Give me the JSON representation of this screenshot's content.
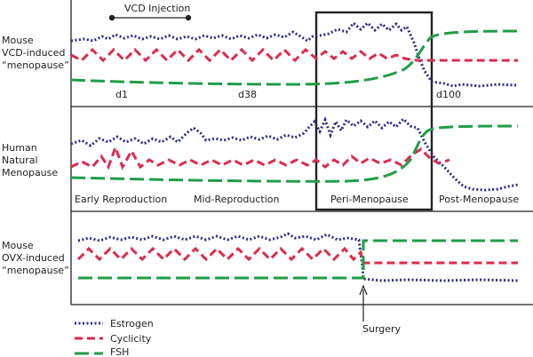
{
  "colors": {
    "estrogen": "#2b2b8c",
    "cyclicity": "#dc2b4e",
    "fsh": "#1f9e46",
    "frame": "#222222",
    "text": "#222222"
  },
  "panels": {
    "vcd": {
      "label_lines": [
        "Mouse",
        "VCD-induced",
        "“menopause”"
      ],
      "markers": [
        "d1",
        "d38",
        "d100"
      ],
      "injection_label": "VCD Injection"
    },
    "human": {
      "label_lines": [
        "Human",
        "Natural",
        "Menopause"
      ],
      "phases": [
        "Early Reproduction",
        "Mid-Reproduction",
        "Peri-Menopause",
        "Post-Menopause"
      ]
    },
    "ovx": {
      "label_lines": [
        "Mouse",
        "OVX-induced",
        "“menopause”"
      ],
      "event_label": "Surgery"
    }
  },
  "legend": {
    "items": [
      {
        "label": "Estrogen",
        "color": "#2b2b8c",
        "style": "dotted"
      },
      {
        "label": "Cyclicity",
        "color": "#dc2b4e",
        "style": "dashed"
      },
      {
        "label": "FSH",
        "color": "#1f9e46",
        "style": "long-dashed"
      }
    ]
  }
}
